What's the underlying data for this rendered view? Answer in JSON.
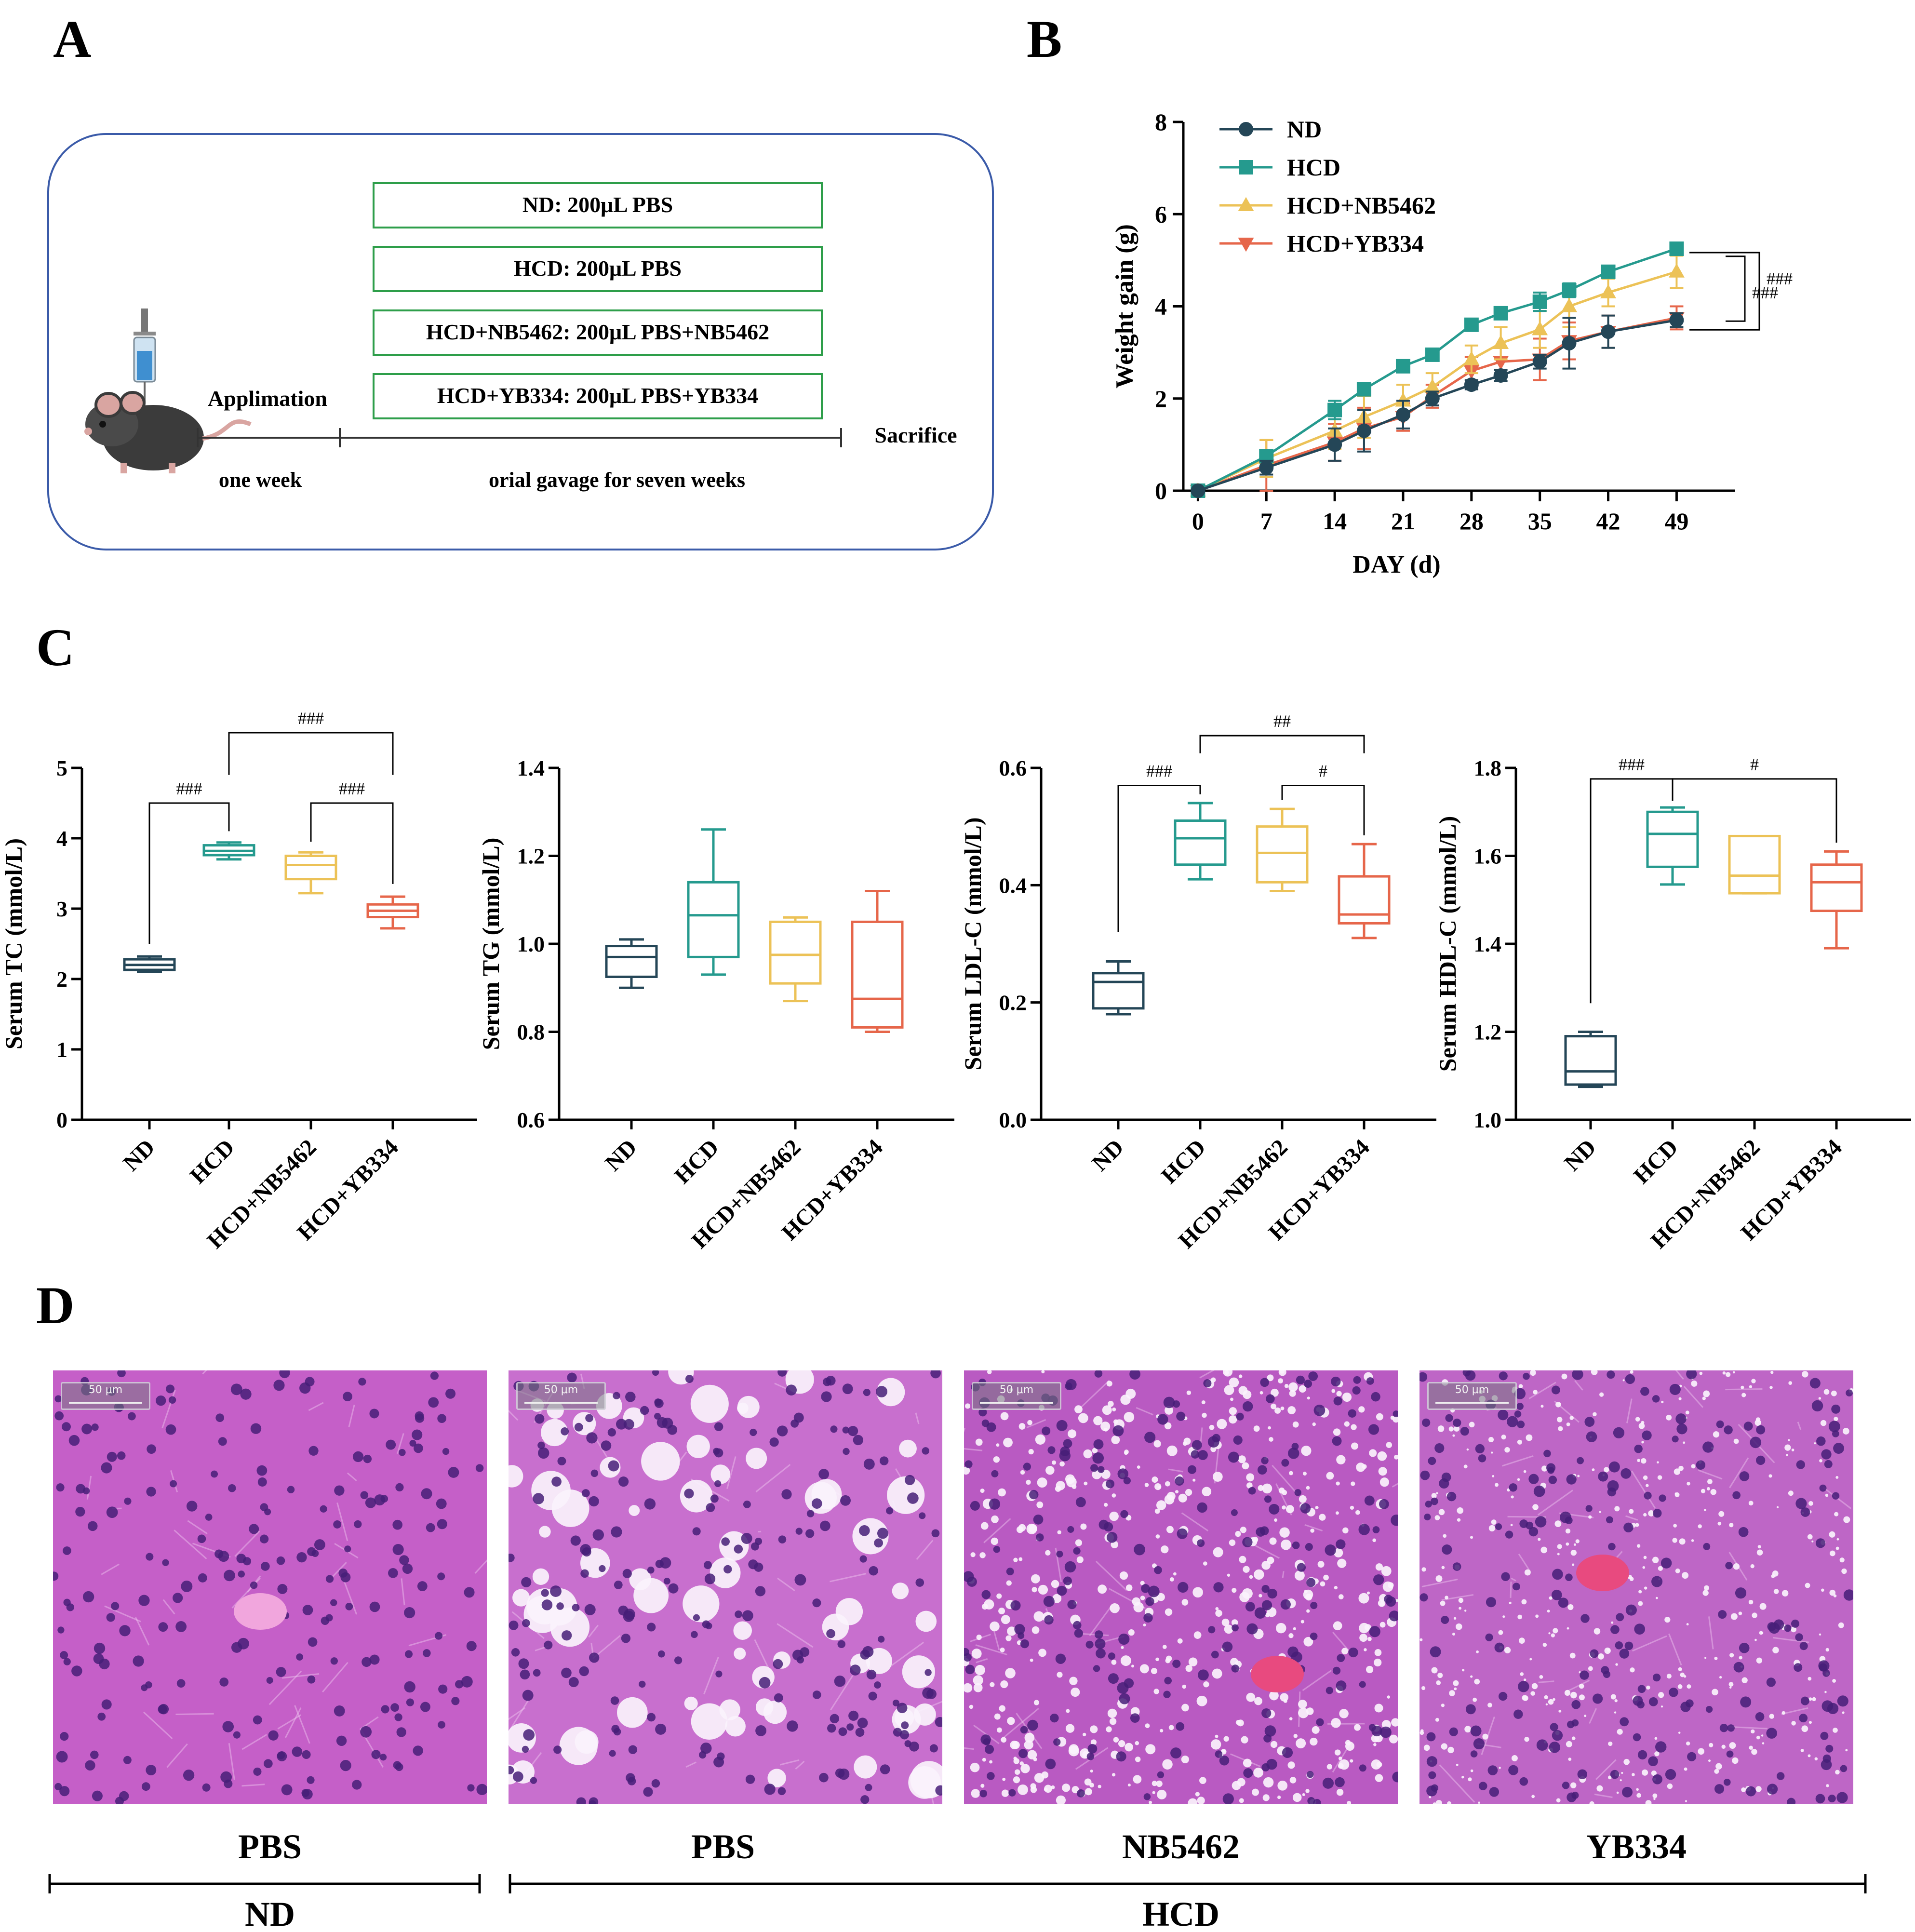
{
  "panel_letters": {
    "a": "A",
    "b": "B",
    "c": "C",
    "d": "D"
  },
  "schematic": {
    "groups": [
      "ND: 200μL PBS",
      "HCD: 200μL PBS",
      "HCD+NB5462: 200μL PBS+NB5462",
      "HCD+YB334: 200μL PBS+YB334"
    ],
    "applimation": "Applimation",
    "sacrifice": "Sacrifice",
    "one_week": "one week",
    "gavage": "orial gavage for seven weeks",
    "border_color": "#3b5ba9",
    "box_color": "#2e9e4a"
  },
  "chart_data": [
    {
      "type": "line",
      "panel": "B",
      "xlabel": "DAY (d)",
      "ylabel": "Weight gain (g)",
      "xlim": [
        0,
        49
      ],
      "ylim": [
        0,
        8
      ],
      "xticks": [
        "0",
        "7",
        "14",
        "21",
        "28",
        "35",
        "42",
        "49"
      ],
      "yticks": [
        "0",
        "2",
        "4",
        "6",
        "8"
      ],
      "series": [
        {
          "name": "ND",
          "color": "#244657",
          "marker": "circle",
          "x": [
            0,
            7,
            14,
            17,
            21,
            24,
            28,
            31,
            35,
            38,
            42,
            49
          ],
          "values": [
            0,
            0.5,
            1.0,
            1.3,
            1.65,
            2.0,
            2.3,
            2.5,
            2.8,
            3.2,
            3.45,
            3.7
          ],
          "err": [
            0,
            0.15,
            0.35,
            0.45,
            0.3,
            0.15,
            0.1,
            0.12,
            0.15,
            0.55,
            0.35,
            0.15
          ]
        },
        {
          "name": "HCD",
          "color": "#259a8e",
          "marker": "square",
          "x": [
            0,
            7,
            14,
            17,
            21,
            24,
            28,
            31,
            35,
            38,
            42,
            49
          ],
          "values": [
            0,
            0.75,
            1.75,
            2.2,
            2.7,
            2.95,
            3.6,
            3.85,
            4.1,
            4.35,
            4.75,
            5.25
          ],
          "err": [
            0,
            0.1,
            0.2,
            0.1,
            0.1,
            0.1,
            0.1,
            0.12,
            0.2,
            0.15,
            0.1,
            0.1
          ]
        },
        {
          "name": "HCD+NB5462",
          "color": "#ecc257",
          "marker": "triangle-up",
          "x": [
            0,
            7,
            14,
            17,
            21,
            24,
            28,
            31,
            35,
            38,
            42,
            49
          ],
          "values": [
            0,
            0.7,
            1.3,
            1.6,
            1.95,
            2.25,
            2.85,
            3.2,
            3.5,
            4.0,
            4.3,
            4.75
          ],
          "err": [
            0,
            0.4,
            0.4,
            0.45,
            0.35,
            0.3,
            0.3,
            0.35,
            0.4,
            0.45,
            0.3,
            0.35
          ]
        },
        {
          "name": "HCD+YB334",
          "color": "#e6664a",
          "marker": "triangle-down",
          "x": [
            0,
            7,
            14,
            17,
            21,
            24,
            28,
            31,
            35,
            38,
            42,
            49
          ],
          "values": [
            0,
            0.55,
            1.05,
            1.35,
            1.6,
            2.05,
            2.6,
            2.8,
            2.85,
            3.25,
            3.45,
            3.75
          ],
          "err": [
            0,
            0.55,
            0.4,
            0.45,
            0.3,
            0.25,
            0.3,
            0.3,
            0.45,
            0.4,
            0.35,
            0.25
          ]
        }
      ],
      "significance": [
        {
          "label": "###",
          "from": "HCD+NB5462",
          "to": "ND"
        },
        {
          "label": "###",
          "from": "HCD",
          "to": "ND"
        }
      ]
    },
    {
      "type": "box",
      "panel": "C",
      "ylabel": "Serum TC (mmol/L)",
      "ylim": [
        0,
        5
      ],
      "yticks": [
        "0",
        "1",
        "2",
        "3",
        "4",
        "5"
      ],
      "categories": [
        "ND",
        "HCD",
        "HCD+NB5462",
        "HCD+YB334"
      ],
      "colors": [
        "#244657",
        "#259a8e",
        "#ecc257",
        "#e6664a"
      ],
      "boxes": [
        {
          "min": 2.1,
          "q1": 2.13,
          "median": 2.2,
          "q3": 2.28,
          "max": 2.32
        },
        {
          "min": 3.7,
          "q1": 3.76,
          "median": 3.82,
          "q3": 3.9,
          "max": 3.94
        },
        {
          "min": 3.22,
          "q1": 3.42,
          "median": 3.62,
          "q3": 3.75,
          "max": 3.8
        },
        {
          "min": 2.72,
          "q1": 2.88,
          "median": 2.97,
          "q3": 3.06,
          "max": 3.17
        }
      ],
      "significance": [
        {
          "from": 0,
          "to": 1,
          "label": "###",
          "level": 4.5,
          "from_y": 2.5,
          "to_y": 4.1
        },
        {
          "from": 2,
          "to": 3,
          "label": "###",
          "level": 4.5,
          "from_y": 3.95,
          "to_y": 3.35
        },
        {
          "from": 1,
          "to": 3,
          "label": "###",
          "level": 5.5,
          "from_y": 4.9,
          "to_y": 4.9
        }
      ]
    },
    {
      "type": "box",
      "panel": "C",
      "ylabel": "Serum TG (mmol/L)",
      "ylim": [
        0.6,
        1.4
      ],
      "yticks": [
        "0.6",
        "0.8",
        "1.0",
        "1.2",
        "1.4"
      ],
      "categories": [
        "ND",
        "HCD",
        "HCD+NB5462",
        "HCD+YB334"
      ],
      "colors": [
        "#244657",
        "#259a8e",
        "#ecc257",
        "#e6664a"
      ],
      "boxes": [
        {
          "min": 0.9,
          "q1": 0.925,
          "median": 0.97,
          "q3": 0.995,
          "max": 1.01
        },
        {
          "min": 0.93,
          "q1": 0.97,
          "median": 1.065,
          "q3": 1.14,
          "max": 1.26
        },
        {
          "min": 0.87,
          "q1": 0.91,
          "median": 0.975,
          "q3": 1.05,
          "max": 1.06
        },
        {
          "min": 0.8,
          "q1": 0.81,
          "median": 0.875,
          "q3": 1.05,
          "max": 1.12
        }
      ],
      "significance": []
    },
    {
      "type": "box",
      "panel": "C",
      "ylabel": "Serum LDL-C (mmol/L)",
      "ylim": [
        0.0,
        0.6
      ],
      "yticks": [
        "0.0",
        "0.2",
        "0.4",
        "0.6"
      ],
      "categories": [
        "ND",
        "HCD",
        "HCD+NB5462",
        "HCD+YB334"
      ],
      "colors": [
        "#244657",
        "#259a8e",
        "#ecc257",
        "#e6664a"
      ],
      "boxes": [
        {
          "min": 0.18,
          "q1": 0.19,
          "median": 0.235,
          "q3": 0.25,
          "max": 0.27
        },
        {
          "min": 0.41,
          "q1": 0.435,
          "median": 0.48,
          "q3": 0.51,
          "max": 0.54
        },
        {
          "min": 0.39,
          "q1": 0.405,
          "median": 0.455,
          "q3": 0.5,
          "max": 0.53
        },
        {
          "min": 0.31,
          "q1": 0.335,
          "median": 0.35,
          "q3": 0.415,
          "max": 0.47
        }
      ],
      "significance": [
        {
          "from": 0,
          "to": 1,
          "label": "###",
          "level": 0.57,
          "from_y": 0.32,
          "to_y": 0.555
        },
        {
          "from": 2,
          "to": 3,
          "label": "#",
          "level": 0.57,
          "from_y": 0.545,
          "to_y": 0.485
        },
        {
          "from": 1,
          "to": 3,
          "label": "##",
          "level": 0.655,
          "from_y": 0.625,
          "to_y": 0.625
        }
      ]
    },
    {
      "type": "box",
      "panel": "C",
      "ylabel": "Serum HDL-C (mmol/L)",
      "ylim": [
        1.0,
        1.8
      ],
      "yticks": [
        "1.0",
        "1.2",
        "1.4",
        "1.6",
        "1.8"
      ],
      "categories": [
        "ND",
        "HCD",
        "HCD+NB5462",
        "HCD+YB334"
      ],
      "colors": [
        "#244657",
        "#259a8e",
        "#ecc257",
        "#e6664a"
      ],
      "boxes": [
        {
          "min": 1.075,
          "q1": 1.08,
          "median": 1.11,
          "q3": 1.19,
          "max": 1.2
        },
        {
          "min": 1.535,
          "q1": 1.575,
          "median": 1.65,
          "q3": 1.7,
          "max": 1.71
        },
        {
          "min": 1.515,
          "q1": 1.515,
          "median": 1.555,
          "q3": 1.645,
          "max": 1.645
        },
        {
          "min": 1.39,
          "q1": 1.475,
          "median": 1.54,
          "q3": 1.58,
          "max": 1.61
        }
      ],
      "significance": [
        {
          "from": 0,
          "to": 1,
          "label": "###",
          "level": 1.775,
          "from_y": 1.265,
          "to_y": 1.725
        },
        {
          "from": 1,
          "to": 3,
          "label": "#",
          "level": 1.775,
          "from_y": 1.725,
          "to_y": 1.63
        }
      ]
    }
  ],
  "histology": {
    "panels": [
      {
        "label": "PBS",
        "bg": "#c55fc8",
        "vacuoles": "none"
      },
      {
        "label": "PBS",
        "bg": "#c86fce",
        "vacuoles": "large"
      },
      {
        "label": "NB5462",
        "bg": "#b95ac2",
        "vacuoles": "small"
      },
      {
        "label": "YB334",
        "bg": "#be66c6",
        "vacuoles": "fine"
      }
    ],
    "scale_text": "50 μm",
    "group_nd": "ND",
    "group_hcd": "HCD"
  }
}
